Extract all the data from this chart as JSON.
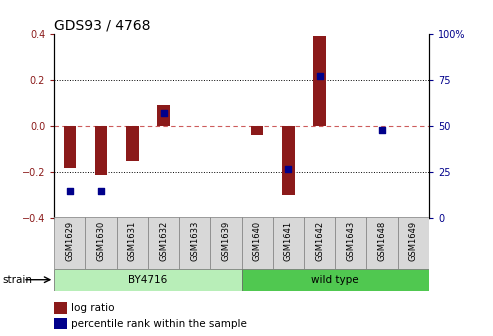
{
  "title": "GDS93 / 4768",
  "samples": [
    "GSM1629",
    "GSM1630",
    "GSM1631",
    "GSM1632",
    "GSM1633",
    "GSM1639",
    "GSM1640",
    "GSM1641",
    "GSM1642",
    "GSM1643",
    "GSM1648",
    "GSM1649"
  ],
  "log_ratio": [
    -0.18,
    -0.21,
    -0.15,
    0.09,
    0.0,
    0.0,
    -0.04,
    -0.3,
    0.39,
    0.0,
    0.0,
    0.0
  ],
  "percentile_rank": [
    15,
    15,
    null,
    57,
    null,
    null,
    null,
    27,
    77,
    null,
    48,
    null
  ],
  "ylim_left": [
    -0.4,
    0.4
  ],
  "ylim_right": [
    0,
    100
  ],
  "yticks_left": [
    -0.4,
    -0.2,
    0.0,
    0.2,
    0.4
  ],
  "yticks_right": [
    0,
    25,
    50,
    75,
    100
  ],
  "bar_color": "#8B1A1A",
  "dot_color": "#00008B",
  "zero_line_color": "#CD5C5C",
  "grid_color": "black",
  "strain_groups": [
    {
      "label": "BY4716",
      "start": 0,
      "end": 5,
      "color": "#B8EEB8"
    },
    {
      "label": "wild type",
      "start": 6,
      "end": 11,
      "color": "#50C850"
    }
  ],
  "strain_label": "strain",
  "legend_log": "log ratio",
  "legend_pct": "percentile rank within the sample",
  "bg_color": "white",
  "plot_bg": "white",
  "title_fontsize": 10
}
